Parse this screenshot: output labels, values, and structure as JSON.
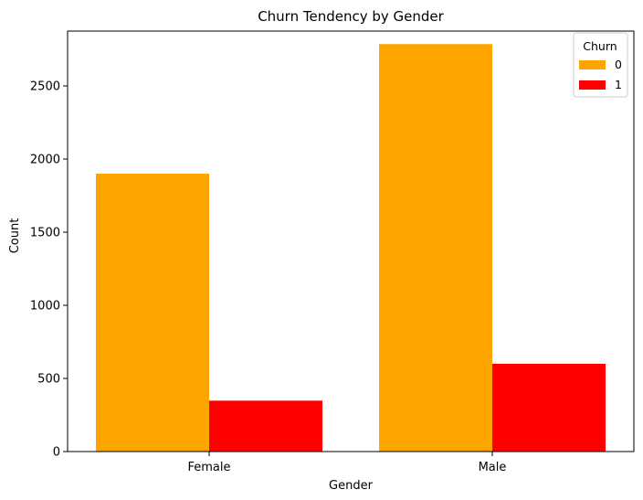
{
  "chart_data": {
    "type": "bar",
    "title": "Churn Tendency by Gender",
    "xlabel": "Gender",
    "ylabel": "Count",
    "categories": [
      "Female",
      "Male"
    ],
    "series": [
      {
        "name": "0",
        "values": [
          1900,
          2786
        ],
        "color": "#FFA500"
      },
      {
        "name": "1",
        "values": [
          348,
          600
        ],
        "color": "#FF0000"
      }
    ],
    "ylim": [
      0,
      2875
    ],
    "yticks": [
      0,
      500,
      1000,
      1500,
      2000,
      2500
    ],
    "grid": false,
    "legend": {
      "title": "Churn",
      "placement": "top-right"
    }
  }
}
